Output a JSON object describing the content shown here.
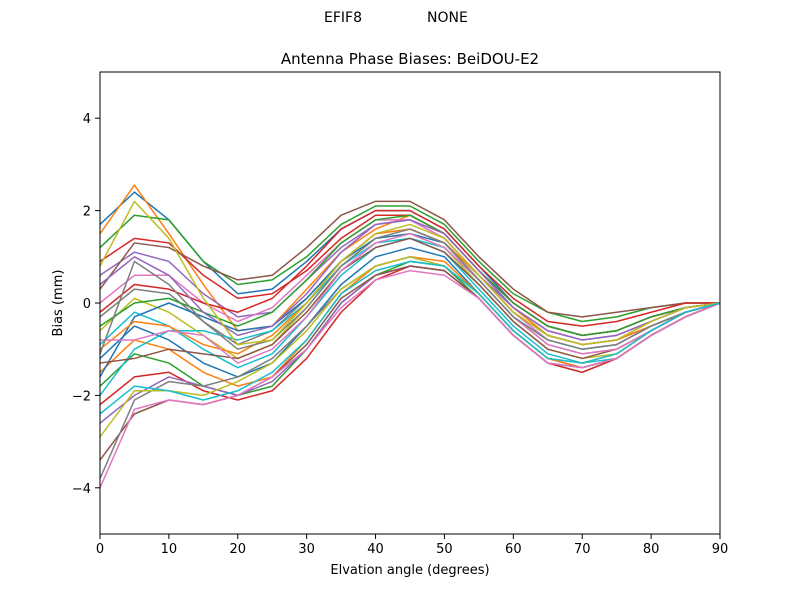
{
  "figure": {
    "suptitle_left": "EFIF8",
    "suptitle_right": "NONE"
  },
  "chart_data": {
    "type": "line",
    "title": "Antenna Phase Biases: BeiDOU-E2",
    "xlabel": "Elvation angle (degrees)",
    "ylabel": "Bias (mm)",
    "xlim": [
      0,
      90
    ],
    "ylim": [
      -5,
      5
    ],
    "xticks": [
      "0",
      "10",
      "20",
      "30",
      "40",
      "50",
      "60",
      "70",
      "80",
      "90"
    ],
    "yticks": [
      "−4",
      "−2",
      "0",
      "2",
      "4"
    ],
    "grid": false,
    "legend": "none",
    "x": [
      0,
      5,
      10,
      15,
      20,
      25,
      30,
      35,
      40,
      45,
      50,
      55,
      60,
      65,
      70,
      75,
      80,
      85,
      90
    ],
    "colors": [
      "#1f77b4",
      "#ff7f0e",
      "#2ca02c",
      "#d62728",
      "#9467bd",
      "#8c564b",
      "#e377c2",
      "#7f7f7f",
      "#bcbd22",
      "#17becf"
    ],
    "series": [
      {
        "values": [
          1.7,
          2.4,
          1.8,
          0.9,
          0.2,
          0.3,
          0.9,
          1.6,
          2.0,
          2.0,
          1.6,
          0.8,
          0.0,
          -0.5,
          -0.7,
          -0.6,
          -0.3,
          -0.1,
          0
        ]
      },
      {
        "values": [
          1.5,
          2.55,
          1.5,
          0.4,
          -0.6,
          -0.5,
          0.3,
          1.1,
          1.6,
          1.9,
          1.5,
          0.7,
          -0.1,
          -0.7,
          -0.9,
          -0.8,
          -0.4,
          -0.1,
          0
        ]
      },
      {
        "values": [
          1.2,
          1.9,
          1.8,
          0.9,
          0.4,
          0.5,
          1.0,
          1.7,
          2.1,
          2.1,
          1.7,
          0.9,
          0.2,
          -0.2,
          -0.4,
          -0.3,
          -0.1,
          0.0,
          0
        ]
      },
      {
        "values": [
          0.9,
          1.4,
          1.3,
          0.6,
          0.1,
          0.2,
          0.7,
          1.4,
          1.9,
          1.9,
          1.5,
          0.7,
          0.0,
          -0.5,
          -0.7,
          -0.6,
          -0.3,
          -0.1,
          0
        ]
      },
      {
        "values": [
          0.6,
          1.1,
          0.9,
          0.2,
          -0.3,
          -0.2,
          0.5,
          1.2,
          1.7,
          1.8,
          1.4,
          0.6,
          -0.1,
          -0.6,
          -0.8,
          -0.7,
          -0.4,
          -0.1,
          0
        ]
      },
      {
        "values": [
          0.3,
          1.3,
          1.2,
          0.8,
          0.5,
          0.6,
          1.2,
          1.9,
          2.2,
          2.2,
          1.8,
          1.0,
          0.3,
          -0.2,
          -0.3,
          -0.2,
          -0.1,
          0.0,
          0
        ]
      },
      {
        "values": [
          0.0,
          0.6,
          0.6,
          0.0,
          -0.4,
          -0.1,
          0.6,
          1.3,
          1.8,
          1.8,
          1.4,
          0.6,
          -0.2,
          -0.8,
          -1.0,
          -0.9,
          -0.5,
          -0.2,
          0
        ]
      },
      {
        "values": [
          -0.3,
          0.3,
          0.2,
          -0.4,
          -0.9,
          -0.6,
          0.1,
          0.9,
          1.5,
          1.6,
          1.3,
          0.5,
          -0.3,
          -0.9,
          -1.1,
          -1.0,
          -0.6,
          -0.2,
          0
        ]
      },
      {
        "values": [
          -0.6,
          0.1,
          -0.2,
          -0.7,
          -1.2,
          -0.9,
          -0.1,
          0.8,
          1.4,
          1.5,
          1.2,
          0.4,
          -0.4,
          -1.0,
          -1.2,
          -1.1,
          -0.6,
          -0.2,
          0
        ]
      },
      {
        "values": [
          -0.9,
          -0.2,
          -0.5,
          -1.0,
          -1.4,
          -1.1,
          -0.3,
          0.6,
          1.2,
          1.4,
          1.1,
          0.3,
          -0.5,
          -1.1,
          -1.3,
          -1.2,
          -0.7,
          -0.3,
          0
        ]
      },
      {
        "values": [
          -1.2,
          -0.5,
          -0.8,
          -1.3,
          -1.6,
          -1.3,
          -0.5,
          0.4,
          1.0,
          1.2,
          1.0,
          0.2,
          -0.6,
          -1.2,
          -1.4,
          -1.2,
          -0.7,
          -0.3,
          0
        ]
      },
      {
        "values": [
          -1.5,
          -0.8,
          -1.0,
          -1.5,
          -1.8,
          -1.6,
          -0.8,
          0.2,
          0.8,
          1.0,
          0.9,
          0.2,
          -0.6,
          -1.2,
          -1.4,
          -1.2,
          -0.7,
          -0.3,
          0
        ]
      },
      {
        "values": [
          -1.8,
          -1.1,
          -1.3,
          -1.8,
          -2.0,
          -1.8,
          -1.0,
          0.0,
          0.6,
          0.9,
          0.8,
          0.1,
          -0.7,
          -1.3,
          -1.5,
          -1.2,
          -0.7,
          -0.3,
          0
        ]
      },
      {
        "values": [
          -2.2,
          -1.6,
          -1.5,
          -1.9,
          -2.1,
          -1.9,
          -1.2,
          -0.2,
          0.5,
          0.8,
          0.7,
          0.1,
          -0.7,
          -1.3,
          -1.5,
          -1.2,
          -0.7,
          -0.3,
          0
        ]
      },
      {
        "values": [
          -2.6,
          -2.0,
          -1.6,
          -1.8,
          -2.0,
          -1.7,
          -1.0,
          0.0,
          0.6,
          0.8,
          0.7,
          0.1,
          -0.7,
          -1.3,
          -1.4,
          -1.2,
          -0.7,
          -0.3,
          0
        ]
      },
      {
        "values": [
          -3.4,
          -2.4,
          -2.1,
          -2.2,
          -2.0,
          -1.6,
          -0.9,
          0.1,
          0.6,
          0.8,
          0.7,
          0.1,
          -0.7,
          -1.3,
          -1.4,
          -1.2,
          -0.7,
          -0.3,
          0
        ]
      },
      {
        "values": [
          -4.0,
          -2.3,
          -2.1,
          -2.2,
          -2.0,
          -1.6,
          -1.0,
          -0.1,
          0.5,
          0.7,
          0.6,
          0.1,
          -0.7,
          -1.3,
          -1.4,
          -1.2,
          -0.7,
          -0.3,
          0
        ]
      },
      {
        "values": [
          -3.8,
          -2.1,
          -1.7,
          -1.8,
          -1.6,
          -1.2,
          -0.5,
          0.3,
          0.8,
          1.0,
          0.8,
          0.2,
          -0.6,
          -1.2,
          -1.3,
          -1.1,
          -0.6,
          -0.2,
          0
        ]
      },
      {
        "values": [
          -2.9,
          -1.9,
          -1.9,
          -2.0,
          -1.7,
          -1.3,
          -0.6,
          0.3,
          0.8,
          1.0,
          0.8,
          0.2,
          -0.6,
          -1.2,
          -1.3,
          -1.1,
          -0.6,
          -0.2,
          0
        ]
      },
      {
        "values": [
          -2.0,
          -1.0,
          -0.6,
          -0.6,
          -0.8,
          -0.6,
          0.0,
          0.8,
          1.3,
          1.4,
          1.2,
          0.5,
          -0.3,
          -0.8,
          -1.0,
          -0.9,
          -0.5,
          -0.2,
          0
        ]
      },
      {
        "values": [
          -1.6,
          -0.3,
          0.0,
          -0.3,
          -0.6,
          -0.5,
          0.1,
          0.9,
          1.4,
          1.5,
          1.3,
          0.6,
          -0.2,
          -0.7,
          -0.9,
          -0.8,
          -0.5,
          -0.2,
          0
        ]
      },
      {
        "values": [
          -1.0,
          -0.4,
          -0.5,
          -0.9,
          -1.1,
          -0.7,
          0.0,
          0.9,
          1.5,
          1.6,
          1.3,
          0.6,
          -0.2,
          -0.7,
          -0.9,
          -0.8,
          -0.5,
          -0.2,
          0
        ]
      },
      {
        "values": [
          -0.5,
          0.0,
          0.1,
          -0.2,
          -0.5,
          -0.2,
          0.5,
          1.3,
          1.8,
          1.9,
          1.5,
          0.7,
          0.0,
          -0.5,
          -0.7,
          -0.6,
          -0.3,
          -0.1,
          0
        ]
      },
      {
        "values": [
          -0.2,
          0.4,
          0.3,
          0.0,
          -0.2,
          0.1,
          0.8,
          1.6,
          2.0,
          2.0,
          1.6,
          0.8,
          0.1,
          -0.4,
          -0.5,
          -0.4,
          -0.2,
          0.0,
          0
        ]
      },
      {
        "values": [
          0.4,
          1.0,
          0.6,
          -0.2,
          -0.7,
          -0.5,
          0.2,
          1.1,
          1.7,
          1.8,
          1.5,
          0.7,
          -0.1,
          -0.6,
          -0.8,
          -0.7,
          -0.4,
          -0.1,
          0
        ]
      },
      {
        "values": [
          -1.3,
          -1.2,
          -1.0,
          -1.1,
          -1.2,
          -0.9,
          -0.2,
          0.7,
          1.2,
          1.4,
          1.1,
          0.4,
          -0.4,
          -1.0,
          -1.2,
          -1.0,
          -0.6,
          -0.2,
          0
        ]
      },
      {
        "values": [
          -0.8,
          -0.8,
          -0.6,
          -0.7,
          -1.3,
          -1.0,
          -0.3,
          0.7,
          1.3,
          1.5,
          1.2,
          0.5,
          -0.3,
          -0.9,
          -1.1,
          -1.0,
          -0.6,
          -0.2,
          0
        ]
      },
      {
        "values": [
          -1.1,
          0.9,
          0.4,
          -0.4,
          -1.0,
          -0.8,
          -0.1,
          0.8,
          1.4,
          1.6,
          1.3,
          0.5,
          -0.3,
          -0.8,
          -1.0,
          -0.9,
          -0.5,
          -0.2,
          0
        ]
      },
      {
        "values": [
          0.8,
          2.2,
          1.4,
          0.1,
          -0.9,
          -0.8,
          0.0,
          0.9,
          1.5,
          1.7,
          1.4,
          0.6,
          -0.2,
          -0.7,
          -0.9,
          -0.8,
          -0.4,
          -0.1,
          0
        ]
      },
      {
        "values": [
          -2.4,
          -1.8,
          -1.9,
          -2.1,
          -1.9,
          -1.5,
          -0.8,
          0.2,
          0.7,
          0.9,
          0.8,
          0.2,
          -0.6,
          -1.2,
          -1.3,
          -1.1,
          -0.6,
          -0.2,
          0
        ]
      }
    ]
  }
}
